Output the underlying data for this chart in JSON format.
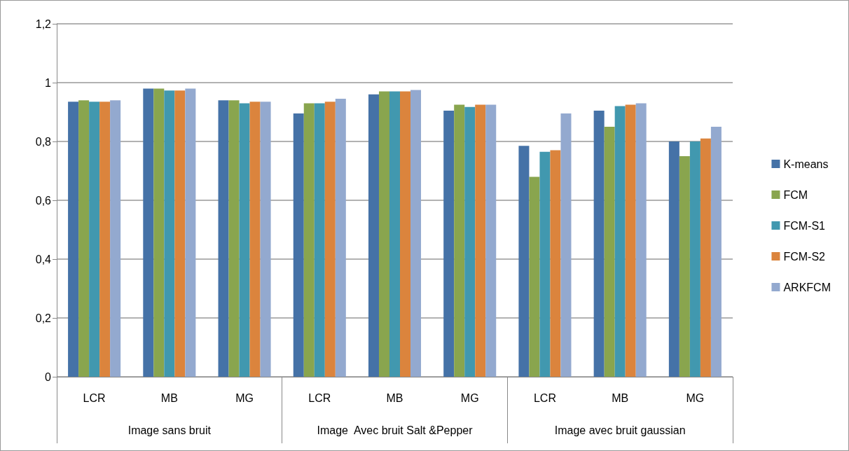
{
  "chart_data": {
    "type": "bar",
    "categories": [
      "LCR",
      "MB",
      "MG",
      "LCR",
      "MB",
      "MG",
      "LCR",
      "MB",
      "MG"
    ],
    "annotations": [
      "Image sans bruit",
      "Image  Avec bruit Salt &Pepper",
      "Image avec bruit gaussian"
    ],
    "series": [
      {
        "name": "K-means",
        "color": "#4572a7",
        "values": [
          0.935,
          0.98,
          0.94,
          0.895,
          0.96,
          0.905,
          0.785,
          0.905,
          0.8
        ]
      },
      {
        "name": "FCM",
        "color": "#89a54e",
        "values": [
          0.94,
          0.98,
          0.94,
          0.93,
          0.97,
          0.925,
          0.68,
          0.85,
          0.75
        ]
      },
      {
        "name": "FCM-S1",
        "color": "#4198af",
        "values": [
          0.935,
          0.973,
          0.93,
          0.93,
          0.97,
          0.917,
          0.765,
          0.92,
          0.8
        ]
      },
      {
        "name": "FCM-S2",
        "color": "#db843d",
        "values": [
          0.935,
          0.973,
          0.935,
          0.935,
          0.97,
          0.925,
          0.77,
          0.925,
          0.81
        ]
      },
      {
        "name": "ARKFCM",
        "color": "#93a9cf",
        "values": [
          0.94,
          0.98,
          0.935,
          0.945,
          0.975,
          0.925,
          0.895,
          0.93,
          0.85
        ]
      }
    ],
    "ylim": [
      0,
      1.2
    ],
    "yticks": [
      0,
      {
        "value": 0.2,
        "label": "0,2"
      },
      {
        "value": 0.4,
        "label": "0,4"
      },
      {
        "value": 0.6,
        "label": "0,6"
      },
      {
        "value": 0.8,
        "label": "0,8"
      },
      1,
      {
        "value": 1.2,
        "label": "1,2"
      }
    ],
    "grid": "y",
    "legend": "right"
  }
}
